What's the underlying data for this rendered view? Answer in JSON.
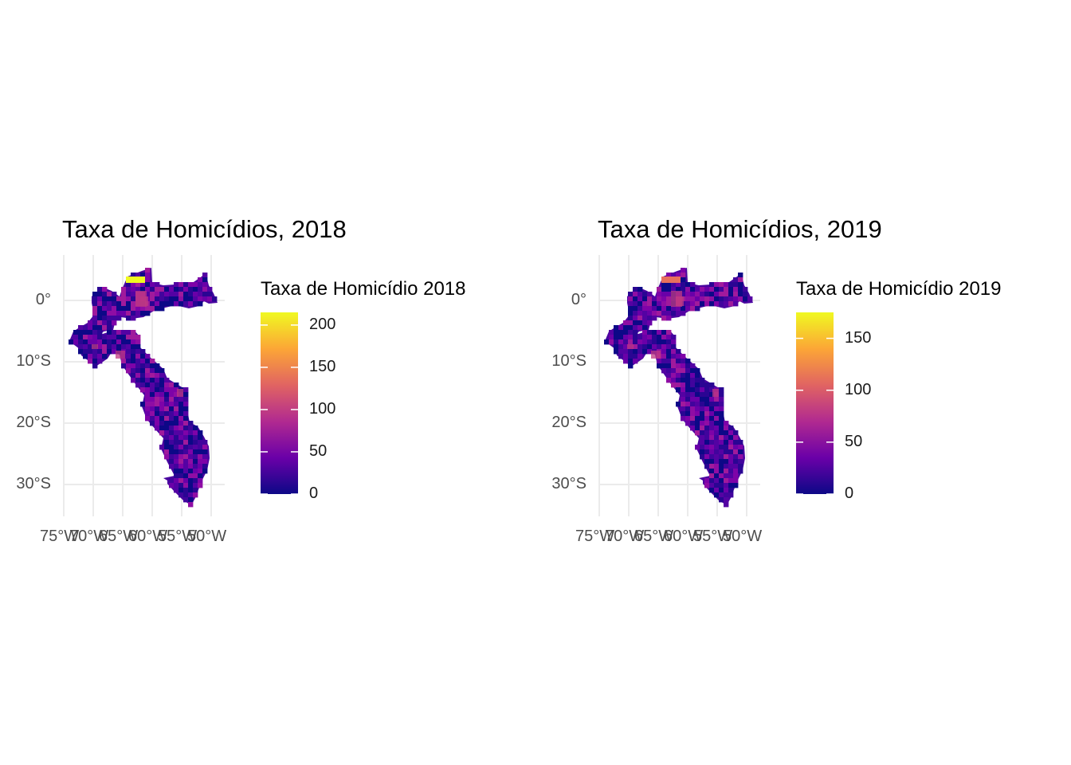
{
  "maps": [
    {
      "title": "Taxa de Homicídios, 2018",
      "legend": {
        "title": "Taxa de Homicídio 2018",
        "max": 215,
        "ticks": [
          "0",
          "50",
          "100",
          "150",
          "200"
        ],
        "tick_values": [
          0,
          50,
          100,
          150,
          200
        ]
      },
      "hotspot_color": "#f0f921"
    },
    {
      "title": "Taxa de Homicídios, 2019",
      "legend": {
        "title": "Taxa de Homicídio 2019",
        "max": 175,
        "ticks": [
          "0",
          "50",
          "100",
          "150"
        ],
        "tick_values": [
          0,
          50,
          100,
          150
        ]
      },
      "hotspot_color": "#e8705d"
    }
  ],
  "axes": {
    "y_labels": [
      "0°",
      "10°S",
      "20°S",
      "30°S"
    ],
    "y_values": [
      0,
      -10,
      -20,
      -30
    ],
    "x_labels": [
      "75°W",
      "70°W",
      "65°W",
      "60°W",
      "55°W",
      "50°W"
    ],
    "x_values": [
      -75,
      -70,
      -65,
      -60,
      -55,
      -50
    ]
  },
  "colors": {
    "scale": [
      "#0d0887",
      "#6a00a8",
      "#b12a90",
      "#e16462",
      "#fca636",
      "#f0f921"
    ],
    "grid": "#ebebeb",
    "base_fill": "#4a06a0"
  }
}
